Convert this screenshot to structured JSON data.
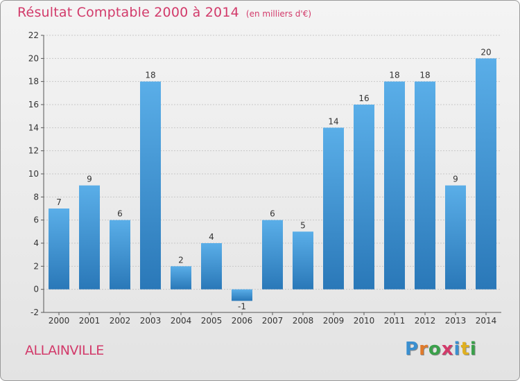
{
  "header": {
    "title": "Résultat Comptable 2000 à 2014",
    "subtitle": "(en milliers d'€)"
  },
  "commune": "ALLAINVILLE",
  "logo": {
    "text": "Proxiti",
    "letter_colors": [
      "#3a8fd0",
      "#e07a2a",
      "#3aa04a",
      "#d23a6a",
      "#3a8fd0",
      "#e0b020",
      "#3aa04a"
    ]
  },
  "colors": {
    "bar_light": "#5aaee8",
    "bar_dark": "#2a78b8",
    "title": "#d23a6a",
    "grid": "#c8c8c8"
  },
  "chart_data": {
    "type": "bar",
    "title": "Résultat Comptable 2000 à 2014",
    "subtitle": "(en milliers d'€)",
    "categories": [
      "2000",
      "2001",
      "2002",
      "2003",
      "2004",
      "2005",
      "2006",
      "2007",
      "2008",
      "2009",
      "2010",
      "2011",
      "2012",
      "2013",
      "2014"
    ],
    "values": [
      7,
      9,
      6,
      18,
      2,
      4,
      -1,
      6,
      5,
      14,
      16,
      18,
      18,
      9,
      20
    ],
    "ylim": [
      -2,
      22
    ],
    "yticks": [
      -2,
      0,
      2,
      4,
      6,
      8,
      10,
      12,
      14,
      16,
      18,
      20,
      22
    ],
    "grid": true
  }
}
